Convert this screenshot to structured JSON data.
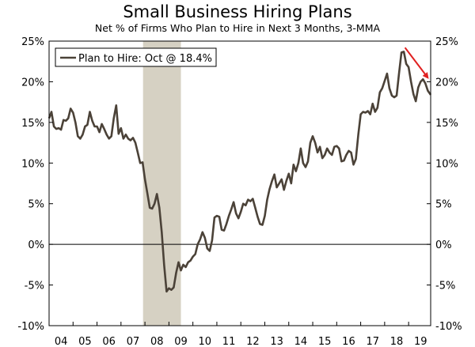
{
  "chart_data": {
    "type": "line",
    "title": "Small Business Hiring Plans",
    "subtitle": "Net % of Firms Who Plan to Hire in Next 3 Months, 3-MMA",
    "xlabel": "",
    "ylabel": "",
    "ylim": [
      -10,
      25
    ],
    "y_ticks": [
      25,
      20,
      15,
      10,
      5,
      0,
      -5,
      -10
    ],
    "y_tick_labels_left": [
      "25%",
      "20%",
      "15%",
      "10%",
      "5%",
      "0%",
      "-5%",
      "-10%"
    ],
    "y_tick_labels_right": [
      "25%",
      "20%",
      "15%",
      "10%",
      "5%",
      "0%",
      "-5%",
      "-10%"
    ],
    "x_range": [
      2004.0,
      2019.92
    ],
    "x_tick_labels": [
      "04",
      "05",
      "06",
      "07",
      "08",
      "09",
      "10",
      "11",
      "12",
      "13",
      "14",
      "15",
      "16",
      "17",
      "18",
      "19"
    ],
    "legend": {
      "label": "Plan to Hire: Oct @ 18.4%",
      "placement": "top-left"
    },
    "recession": {
      "start": 2007.92,
      "end": 2009.5
    },
    "colors": {
      "line": "#4b4238",
      "recession": "#d6d1c3",
      "arrow": "#e02020",
      "axis": "#000000"
    },
    "series": [
      {
        "name": "Plan to Hire",
        "x": [
          2004.0,
          2004.1,
          2004.2,
          2004.3,
          2004.4,
          2004.5,
          2004.6,
          2004.7,
          2004.8,
          2004.9,
          2005.0,
          2005.1,
          2005.2,
          2005.3,
          2005.4,
          2005.5,
          2005.6,
          2005.7,
          2005.8,
          2005.9,
          2006.0,
          2006.1,
          2006.2,
          2006.3,
          2006.4,
          2006.5,
          2006.6,
          2006.7,
          2006.8,
          2006.9,
          2007.0,
          2007.1,
          2007.2,
          2007.3,
          2007.4,
          2007.5,
          2007.6,
          2007.7,
          2007.8,
          2007.9,
          2008.0,
          2008.1,
          2008.2,
          2008.3,
          2008.4,
          2008.5,
          2008.6,
          2008.7,
          2008.8,
          2008.9,
          2009.0,
          2009.1,
          2009.2,
          2009.3,
          2009.4,
          2009.5,
          2009.6,
          2009.7,
          2009.8,
          2009.9,
          2010.0,
          2010.1,
          2010.2,
          2010.3,
          2010.4,
          2010.5,
          2010.6,
          2010.7,
          2010.8,
          2010.9,
          2011.0,
          2011.1,
          2011.2,
          2011.3,
          2011.4,
          2011.5,
          2011.6,
          2011.7,
          2011.8,
          2011.9,
          2012.0,
          2012.1,
          2012.2,
          2012.3,
          2012.4,
          2012.5,
          2012.6,
          2012.7,
          2012.8,
          2012.9,
          2013.0,
          2013.1,
          2013.2,
          2013.3,
          2013.4,
          2013.5,
          2013.6,
          2013.7,
          2013.8,
          2013.9,
          2014.0,
          2014.1,
          2014.2,
          2014.3,
          2014.4,
          2014.5,
          2014.6,
          2014.7,
          2014.8,
          2014.9,
          2015.0,
          2015.1,
          2015.2,
          2015.3,
          2015.4,
          2015.5,
          2015.6,
          2015.7,
          2015.8,
          2015.9,
          2016.0,
          2016.1,
          2016.2,
          2016.3,
          2016.4,
          2016.5,
          2016.6,
          2016.7,
          2016.8,
          2016.9,
          2017.0,
          2017.1,
          2017.2,
          2017.3,
          2017.4,
          2017.5,
          2017.6,
          2017.7,
          2017.8,
          2017.9,
          2018.0,
          2018.1,
          2018.2,
          2018.3,
          2018.4,
          2018.5,
          2018.6,
          2018.7,
          2018.8,
          2018.9,
          2019.0,
          2019.1,
          2019.2,
          2019.3,
          2019.4,
          2019.5,
          2019.6,
          2019.7,
          2019.8,
          2019.92
        ],
        "values": [
          15.5,
          16.3,
          14.5,
          14.2,
          14.3,
          14.1,
          15.3,
          15.2,
          15.5,
          16.7,
          16.2,
          15.0,
          13.3,
          13.0,
          13.5,
          14.5,
          14.7,
          16.3,
          15.2,
          14.5,
          14.5,
          13.8,
          14.8,
          14.2,
          13.5,
          13.0,
          13.3,
          15.5,
          17.1,
          13.6,
          14.3,
          13.0,
          13.5,
          13.0,
          12.8,
          13.1,
          12.5,
          11.3,
          10.0,
          10.1,
          8.0,
          6.3,
          4.5,
          4.4,
          5.0,
          6.2,
          4.5,
          1.5,
          -2.5,
          -5.8,
          -5.4,
          -5.6,
          -5.3,
          -3.5,
          -2.2,
          -3.2,
          -2.5,
          -2.8,
          -2.2,
          -2.0,
          -1.5,
          -1.2,
          0.0,
          0.6,
          1.5,
          0.8,
          -0.5,
          -0.8,
          0.5,
          3.3,
          3.5,
          3.4,
          1.8,
          1.7,
          2.5,
          3.5,
          4.3,
          5.2,
          3.8,
          3.2,
          4.0,
          5.0,
          4.8,
          5.5,
          5.3,
          5.6,
          4.5,
          3.4,
          2.5,
          2.4,
          3.5,
          5.5,
          6.8,
          7.8,
          8.6,
          7.0,
          7.5,
          8.0,
          6.7,
          7.8,
          8.7,
          7.5,
          9.8,
          9.0,
          10.0,
          11.8,
          10.0,
          9.5,
          10.2,
          12.5,
          13.3,
          12.5,
          11.3,
          12.0,
          10.6,
          11.0,
          11.8,
          11.3,
          11.0,
          12.0,
          12.1,
          11.8,
          10.2,
          10.3,
          11.0,
          11.5,
          11.3,
          9.8,
          10.5,
          13.5,
          16.0,
          16.3,
          16.2,
          16.4,
          16.0,
          17.3,
          16.3,
          16.8,
          18.7,
          19.2,
          20.1,
          21.0,
          19.2,
          18.3,
          18.1,
          18.3,
          21.0,
          23.6,
          23.7,
          22.2,
          21.8,
          20.0,
          18.5,
          17.6,
          19.3,
          20.0,
          20.3,
          19.8,
          18.9,
          18.4
        ]
      }
    ]
  }
}
